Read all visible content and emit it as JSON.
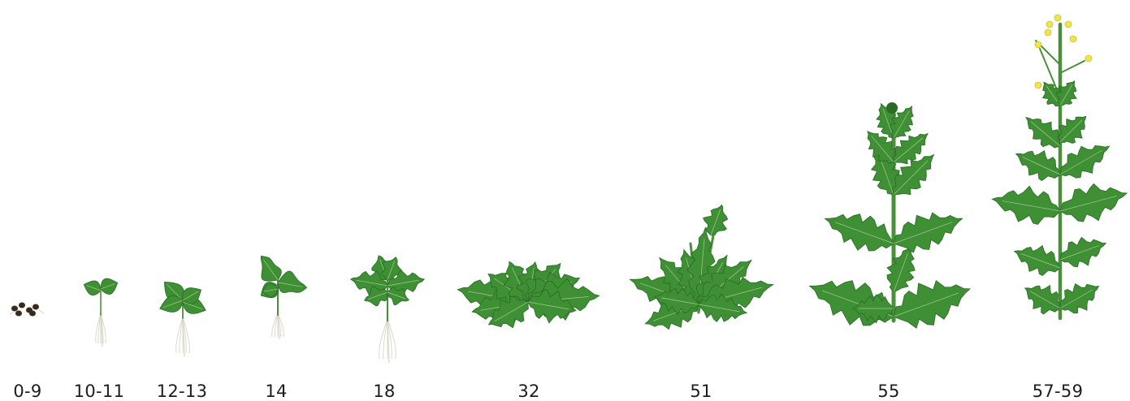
{
  "stages": [
    {
      "label": "0-9"
    },
    {
      "label": "10-11"
    },
    {
      "label": "12-13"
    },
    {
      "label": "14"
    },
    {
      "label": "18"
    },
    {
      "label": "32"
    },
    {
      "label": "51"
    },
    {
      "label": "55"
    },
    {
      "label": "57-59"
    }
  ],
  "colors": {
    "leaf": "#3f8f35",
    "leaf_dark": "#2a6b26",
    "stem": "#4a8f3a",
    "root": "#d8d6c8",
    "seed": "#3a2a1e",
    "flower": "#f0e64a"
  }
}
